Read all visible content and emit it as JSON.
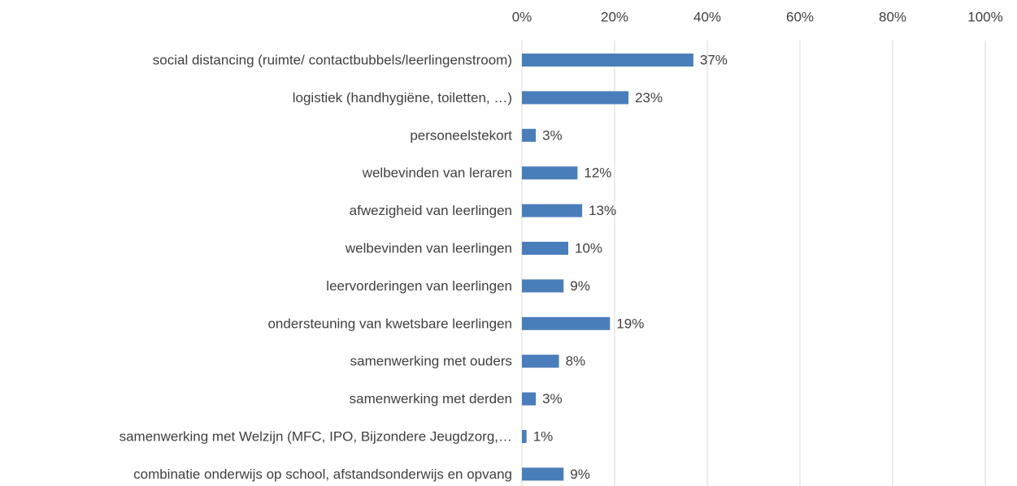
{
  "chart_data": {
    "type": "bar",
    "orientation": "horizontal",
    "categories": [
      "social distancing (ruimte/ contactbubbels/leerlingenstroom)",
      "logistiek (handhygiëne, toiletten, …)",
      "personeelstekort",
      "welbevinden van leraren",
      "afwezigheid van leerlingen",
      "welbevinden van leerlingen",
      "leervorderingen van leerlingen",
      "ondersteuning van kwetsbare leerlingen",
      "samenwerking met ouders",
      "samenwerking met derden",
      "samenwerking met Welzijn (MFC, IPO, Bijzondere Jeugdzorg,…",
      "combinatie onderwijs op school, afstandsonderwijs en opvang"
    ],
    "values": [
      37,
      23,
      3,
      12,
      13,
      10,
      9,
      19,
      8,
      3,
      1,
      9
    ],
    "value_labels": [
      "37%",
      "23%",
      "3%",
      "12%",
      "13%",
      "10%",
      "9%",
      "19%",
      "8%",
      "3%",
      "1%",
      "9%"
    ],
    "color": "#4a7ebb",
    "xlim": [
      0,
      100
    ],
    "xticks": [
      {
        "value": 0,
        "label": "0%"
      },
      {
        "value": 20,
        "label": "20%"
      },
      {
        "value": 40,
        "label": "40%"
      },
      {
        "value": 60,
        "label": "60%"
      },
      {
        "value": 80,
        "label": "80%"
      },
      {
        "value": 100,
        "label": "100%"
      }
    ],
    "grid": true
  }
}
